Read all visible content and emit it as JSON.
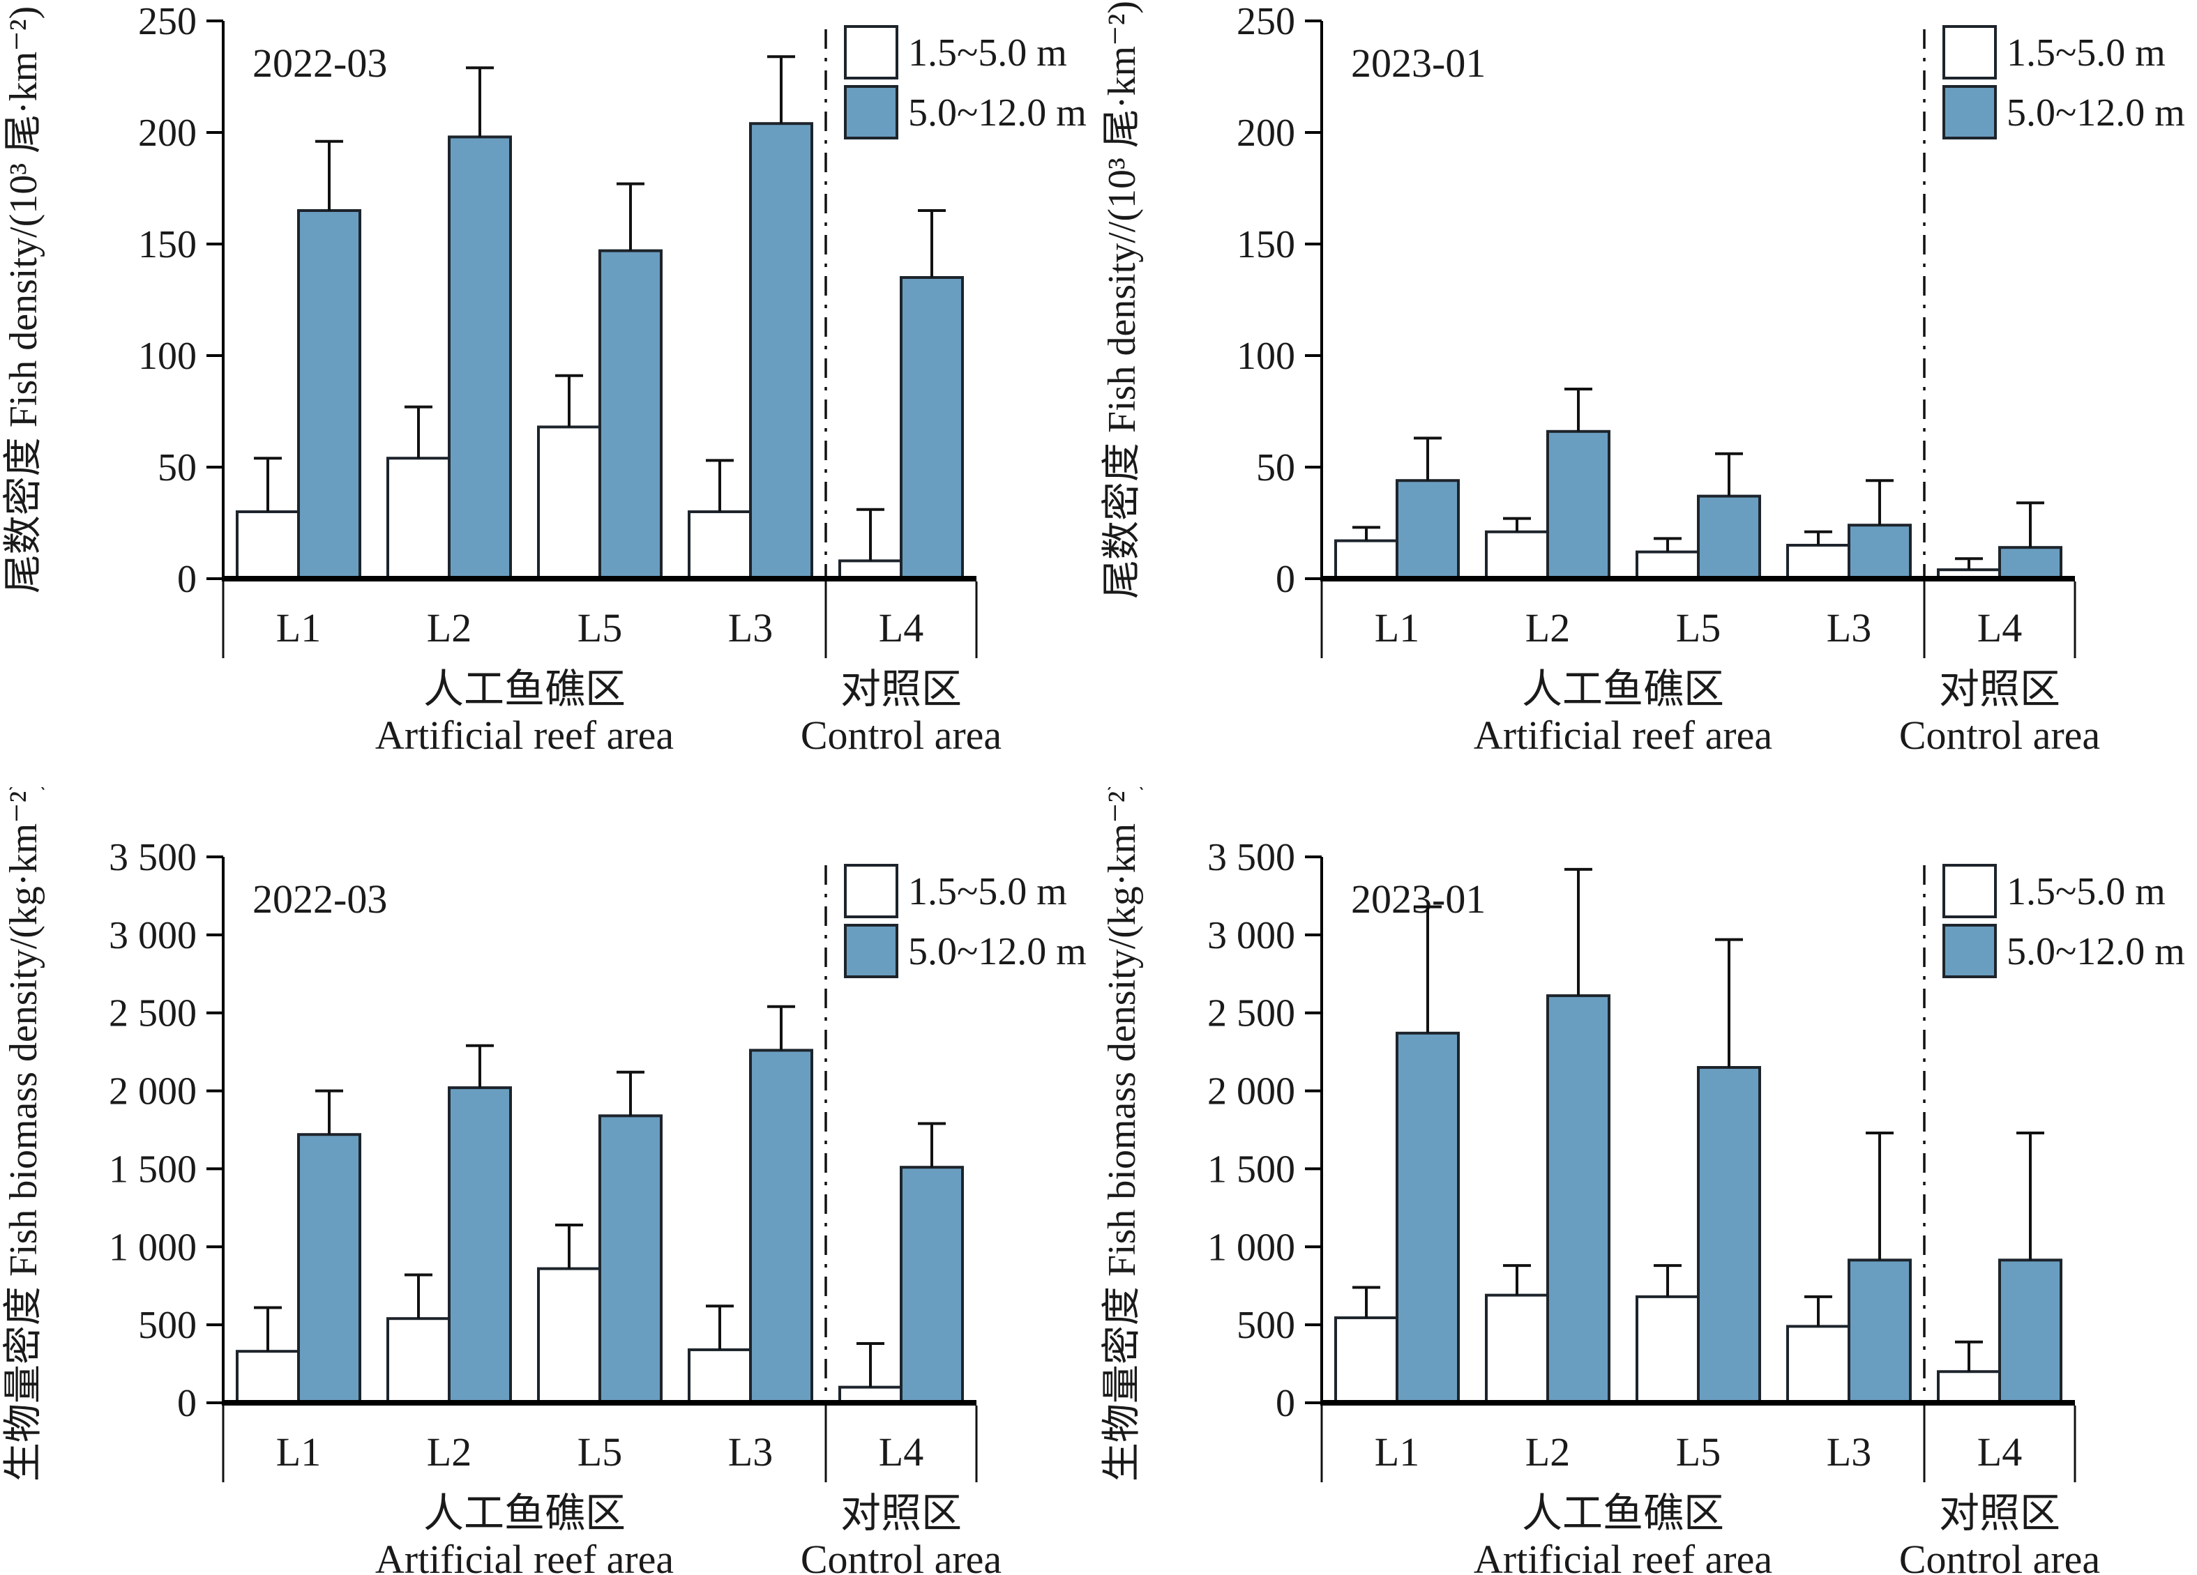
{
  "figure": {
    "background": "#ffffff",
    "bar_fill_shallow": "#ffffff",
    "bar_fill_deep": "#6a9ec0",
    "bar_stroke": "#1d242b",
    "text_color": "#1a1a1a",
    "legend": [
      "1.5~5.0 m",
      "5.0~12.0 m"
    ]
  },
  "chart_data": [
    {
      "id": "fish-density-2022-03",
      "type": "bar",
      "title": "2022-03",
      "ylabel": "尾数密度 Fish density/(10³ 尾·km⁻²)",
      "xlabel": "",
      "ylim": [
        0,
        250
      ],
      "yticks": [
        "0",
        "50",
        "100",
        "150",
        "200",
        "250"
      ],
      "categories": [
        "L1",
        "L2",
        "L5",
        "L3",
        "L4"
      ],
      "series": [
        {
          "name": "1.5~5.0 m",
          "role": "shallow",
          "values": [
            30,
            54,
            68,
            30,
            8
          ],
          "errors": [
            24,
            23,
            23,
            23,
            23
          ]
        },
        {
          "name": "5.0~12.0 m",
          "role": "deep",
          "values": [
            165,
            198,
            147,
            204,
            135
          ],
          "errors": [
            31,
            31,
            30,
            30,
            30
          ]
        }
      ],
      "groups": [
        {
          "label_zh": "人工鱼礁区",
          "label_en": "Artificial reef area",
          "span": [
            0,
            4
          ]
        },
        {
          "label_zh": "对照区",
          "label_en": "Control area",
          "span": [
            4,
            5
          ]
        }
      ],
      "legend_position": "top-right",
      "grid": false
    },
    {
      "id": "fish-density-2023-01",
      "type": "bar",
      "title": "2023-01",
      "ylabel": "尾数密度 Fish density//(10³ 尾·km⁻²)",
      "xlabel": "",
      "ylim": [
        0,
        250
      ],
      "yticks": [
        "0",
        "50",
        "100",
        "150",
        "200",
        "250"
      ],
      "categories": [
        "L1",
        "L2",
        "L5",
        "L3",
        "L4"
      ],
      "series": [
        {
          "name": "1.5~5.0 m",
          "role": "shallow",
          "values": [
            17,
            21,
            12,
            15,
            4
          ],
          "errors": [
            6,
            6,
            6,
            6,
            5
          ]
        },
        {
          "name": "5.0~12.0 m",
          "role": "deep",
          "values": [
            44,
            66,
            37,
            24,
            14
          ],
          "errors": [
            19,
            19,
            19,
            20,
            20
          ]
        }
      ],
      "groups": [
        {
          "label_zh": "人工鱼礁区",
          "label_en": "Artificial reef area",
          "span": [
            0,
            4
          ]
        },
        {
          "label_zh": "对照区",
          "label_en": "Control area",
          "span": [
            4,
            5
          ]
        }
      ],
      "legend_position": "top-right",
      "grid": false
    },
    {
      "id": "fish-biomass-density-2022-03",
      "type": "bar",
      "title": "2022-03",
      "ylabel": "生物量密度 Fish biomass density/(kg·km⁻²)",
      "xlabel": "",
      "ylim": [
        0,
        3500
      ],
      "yticks": [
        "0",
        "500",
        "1 000",
        "1 500",
        "2 000",
        "2 500",
        "3 000",
        "3 500"
      ],
      "categories": [
        "L1",
        "L2",
        "L5",
        "L3",
        "L4"
      ],
      "series": [
        {
          "name": "1.5~5.0 m",
          "role": "shallow",
          "values": [
            330,
            540,
            860,
            340,
            100
          ],
          "errors": [
            280,
            280,
            280,
            280,
            280
          ]
        },
        {
          "name": "5.0~12.0 m",
          "role": "deep",
          "values": [
            1720,
            2020,
            1840,
            2260,
            1510
          ],
          "errors": [
            280,
            270,
            280,
            280,
            280
          ]
        }
      ],
      "groups": [
        {
          "label_zh": "人工鱼礁区",
          "label_en": "Artificial reef area",
          "span": [
            0,
            4
          ]
        },
        {
          "label_zh": "对照区",
          "label_en": "Control area",
          "span": [
            4,
            5
          ]
        }
      ],
      "legend_position": "top-right",
      "grid": false
    },
    {
      "id": "fish-biomass-density-2023-01",
      "type": "bar",
      "title": "2023-01",
      "ylabel": "生物量密度 Fish biomass density/(kg·km⁻²)",
      "xlabel": "",
      "ylim": [
        0,
        3500
      ],
      "yticks": [
        "0",
        "500",
        "1 000",
        "1 500",
        "2 000",
        "2 500",
        "3 000",
        "3 500"
      ],
      "categories": [
        "L1",
        "L2",
        "L5",
        "L3",
        "L4"
      ],
      "series": [
        {
          "name": "1.5~5.0 m",
          "role": "shallow",
          "values": [
            545,
            690,
            680,
            490,
            200
          ],
          "errors": [
            195,
            190,
            200,
            190,
            190
          ]
        },
        {
          "name": "5.0~12.0 m",
          "role": "deep",
          "values": [
            2370,
            2610,
            2150,
            915,
            915
          ],
          "errors": [
            810,
            810,
            820,
            815,
            815
          ]
        }
      ],
      "groups": [
        {
          "label_zh": "人工鱼礁区",
          "label_en": "Artificial reef area",
          "span": [
            0,
            4
          ]
        },
        {
          "label_zh": "对照区",
          "label_en": "Control area",
          "span": [
            4,
            5
          ]
        }
      ],
      "legend_position": "top-right",
      "grid": false
    }
  ]
}
